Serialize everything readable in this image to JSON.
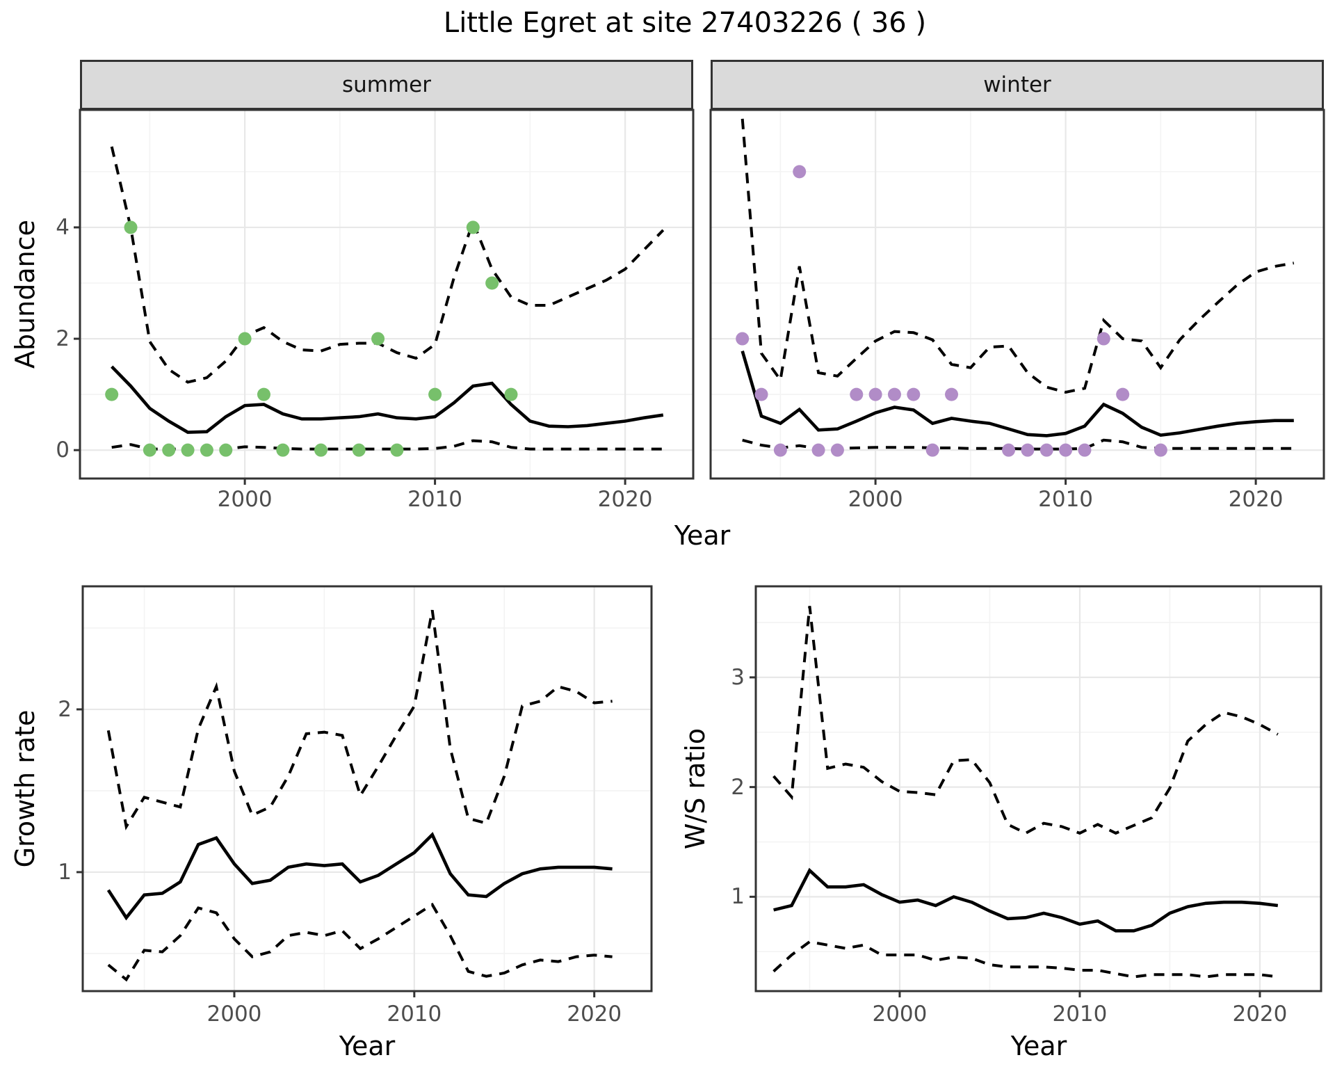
{
  "page": {
    "title": "Little Egret at site 27403226 ( 36 )"
  },
  "colors": {
    "background": "#FFFFFF",
    "panel_border": "#333333",
    "strip_background": "#DADADA",
    "strip_text": "#141414",
    "grid_major": "#E8E8E8",
    "grid_minor": "#F3F3F3",
    "tick_mark": "#333333",
    "tick_text": "#4D4D4D",
    "line": "#000000",
    "summer_point": "#77C06B",
    "winter_point": "#B18CC7"
  },
  "chart_data": [
    {
      "id": "abundance_summer",
      "type": "line",
      "facet_label": "summer",
      "xlabel": "Year",
      "ylabel": "Abundance",
      "xlim": [
        1991.33,
        2023.58
      ],
      "ylim": [
        -0.51,
        6.11
      ],
      "x_major_ticks": [
        2000,
        2010,
        2020
      ],
      "x_minor_ticks": [
        1995,
        2005,
        2015
      ],
      "y_major_ticks": [
        0,
        2,
        4
      ],
      "y_minor_ticks": [
        1,
        3,
        5
      ],
      "show_y_axis": true,
      "point_color": "#77C06B",
      "years": [
        1993,
        1994,
        1995,
        1996,
        1997,
        1998,
        1999,
        2000,
        2001,
        2002,
        2003,
        2004,
        2005,
        2006,
        2007,
        2008,
        2009,
        2010,
        2011,
        2012,
        2013,
        2014,
        2015,
        2016,
        2017,
        2018,
        2019,
        2020,
        2021,
        2022
      ],
      "series": [
        {
          "name": "median",
          "style": "solid",
          "values": [
            1.5,
            1.15,
            0.75,
            0.52,
            0.32,
            0.33,
            0.6,
            0.8,
            0.82,
            0.65,
            0.56,
            0.56,
            0.58,
            0.6,
            0.65,
            0.58,
            0.56,
            0.6,
            0.85,
            1.15,
            1.2,
            0.82,
            0.52,
            0.43,
            0.42,
            0.44,
            0.48,
            0.52,
            0.58,
            0.63
          ]
        },
        {
          "name": "lower95",
          "style": "dashed",
          "values": [
            0.05,
            0.1,
            0.02,
            0.02,
            0.02,
            0.02,
            0.02,
            0.06,
            0.05,
            0.03,
            0.02,
            0.02,
            0.02,
            0.02,
            0.02,
            0.02,
            0.02,
            0.03,
            0.07,
            0.17,
            0.15,
            0.05,
            0.02,
            0.02,
            0.02,
            0.02,
            0.02,
            0.02,
            0.02,
            0.02
          ]
        },
        {
          "name": "upper95",
          "style": "dashed",
          "values": [
            5.45,
            4.0,
            1.95,
            1.45,
            1.22,
            1.3,
            1.6,
            2.05,
            2.2,
            1.95,
            1.8,
            1.78,
            1.9,
            1.92,
            1.92,
            1.75,
            1.65,
            1.9,
            3.1,
            4.1,
            3.25,
            2.75,
            2.6,
            2.6,
            2.75,
            2.9,
            3.05,
            3.25,
            3.6,
            3.95
          ]
        }
      ],
      "observations": [
        [
          1993,
          1
        ],
        [
          1994,
          4
        ],
        [
          1995,
          0
        ],
        [
          1996,
          0
        ],
        [
          1997,
          0
        ],
        [
          1998,
          0
        ],
        [
          1999,
          0
        ],
        [
          2000,
          2
        ],
        [
          2001,
          1
        ],
        [
          2002,
          0
        ],
        [
          2004,
          0
        ],
        [
          2006,
          0
        ],
        [
          2007,
          2
        ],
        [
          2008,
          0
        ],
        [
          2010,
          1
        ],
        [
          2012,
          4
        ],
        [
          2013,
          3
        ],
        [
          2014,
          1
        ]
      ]
    },
    {
      "id": "abundance_winter",
      "type": "line",
      "facet_label": "winter",
      "xlabel": "Year",
      "ylabel": "Abundance",
      "xlim": [
        1991.33,
        2023.58
      ],
      "ylim": [
        -0.51,
        6.11
      ],
      "x_major_ticks": [
        2000,
        2010,
        2020
      ],
      "x_minor_ticks": [
        1995,
        2005,
        2015
      ],
      "y_major_ticks": [
        0,
        2,
        4
      ],
      "y_minor_ticks": [
        1,
        3,
        5
      ],
      "show_y_axis": false,
      "point_color": "#B18CC7",
      "years": [
        1993,
        1994,
        1995,
        1996,
        1997,
        1998,
        1999,
        2000,
        2001,
        2002,
        2003,
        2004,
        2005,
        2006,
        2007,
        2008,
        2009,
        2010,
        2011,
        2012,
        2013,
        2014,
        2015,
        2016,
        2017,
        2018,
        2019,
        2020,
        2021,
        2022
      ],
      "series": [
        {
          "name": "median",
          "style": "solid",
          "values": [
            1.78,
            0.61,
            0.48,
            0.73,
            0.36,
            0.38,
            0.52,
            0.67,
            0.77,
            0.72,
            0.48,
            0.57,
            0.52,
            0.48,
            0.38,
            0.28,
            0.26,
            0.3,
            0.43,
            0.82,
            0.66,
            0.41,
            0.27,
            0.31,
            0.37,
            0.43,
            0.48,
            0.51,
            0.53,
            0.53
          ]
        },
        {
          "name": "lower95",
          "style": "dashed",
          "values": [
            0.18,
            0.09,
            0.04,
            0.08,
            0.03,
            0.03,
            0.04,
            0.05,
            0.05,
            0.05,
            0.04,
            0.04,
            0.03,
            0.03,
            0.03,
            0.02,
            0.02,
            0.02,
            0.03,
            0.18,
            0.15,
            0.05,
            0.03,
            0.03,
            0.03,
            0.03,
            0.03,
            0.03,
            0.03,
            0.03
          ]
        },
        {
          "name": "upper95",
          "style": "dashed",
          "values": [
            5.95,
            1.74,
            1.26,
            3.3,
            1.39,
            1.33,
            1.65,
            1.96,
            2.13,
            2.11,
            1.98,
            1.54,
            1.48,
            1.85,
            1.87,
            1.39,
            1.13,
            1.04,
            1.11,
            2.33,
            2.0,
            1.96,
            1.48,
            1.98,
            2.33,
            2.65,
            2.96,
            3.2,
            3.3,
            3.36
          ]
        }
      ],
      "observations": [
        [
          1993,
          2
        ],
        [
          1994,
          1
        ],
        [
          1995,
          0
        ],
        [
          1996,
          5
        ],
        [
          1997,
          0
        ],
        [
          1998,
          0
        ],
        [
          1999,
          1
        ],
        [
          2000,
          1
        ],
        [
          2001,
          1
        ],
        [
          2002,
          1
        ],
        [
          2003,
          0
        ],
        [
          2004,
          1
        ],
        [
          2007,
          0
        ],
        [
          2008,
          0
        ],
        [
          2009,
          0
        ],
        [
          2010,
          0
        ],
        [
          2011,
          0
        ],
        [
          2012,
          2
        ],
        [
          2013,
          1
        ],
        [
          2015,
          0
        ]
      ]
    },
    {
      "id": "growth_rate",
      "type": "line",
      "facet_label": "",
      "xlabel": "Year",
      "ylabel": "Growth rate",
      "xlim": [
        1991.58,
        2023.18
      ],
      "ylim": [
        0.269,
        2.756
      ],
      "x_major_ticks": [
        2000,
        2010,
        2020
      ],
      "x_minor_ticks": [
        1995,
        2005,
        2015
      ],
      "y_major_ticks": [
        1,
        2
      ],
      "y_minor_ticks": [
        0.5,
        1.5,
        2.5
      ],
      "show_y_axis": true,
      "point_color": "#000000",
      "years": [
        1993,
        1994,
        1995,
        1996,
        1997,
        1998,
        1999,
        2000,
        2001,
        2002,
        2003,
        2004,
        2005,
        2006,
        2007,
        2008,
        2009,
        2010,
        2011,
        2012,
        2013,
        2014,
        2015,
        2016,
        2017,
        2018,
        2019,
        2020,
        2021
      ],
      "series": [
        {
          "name": "median",
          "style": "solid",
          "values": [
            0.89,
            0.72,
            0.86,
            0.87,
            0.94,
            1.17,
            1.21,
            1.05,
            0.93,
            0.95,
            1.03,
            1.05,
            1.04,
            1.05,
            0.94,
            0.98,
            1.05,
            1.12,
            1.23,
            0.99,
            0.86,
            0.85,
            0.93,
            0.99,
            1.02,
            1.03,
            1.03,
            1.03,
            1.02
          ]
        },
        {
          "name": "lower95",
          "style": "dashed",
          "values": [
            0.43,
            0.34,
            0.52,
            0.51,
            0.61,
            0.78,
            0.75,
            0.59,
            0.48,
            0.51,
            0.61,
            0.63,
            0.61,
            0.64,
            0.53,
            0.59,
            0.66,
            0.73,
            0.8,
            0.61,
            0.39,
            0.36,
            0.38,
            0.43,
            0.46,
            0.45,
            0.48,
            0.49,
            0.48
          ]
        },
        {
          "name": "upper95",
          "style": "dashed",
          "values": [
            1.87,
            1.28,
            1.46,
            1.43,
            1.4,
            1.88,
            2.14,
            1.62,
            1.35,
            1.4,
            1.59,
            1.85,
            1.86,
            1.84,
            1.47,
            1.65,
            1.84,
            2.02,
            2.61,
            1.76,
            1.33,
            1.3,
            1.59,
            2.02,
            2.05,
            2.14,
            2.11,
            2.04,
            2.05
          ]
        }
      ],
      "observations": []
    },
    {
      "id": "ws_ratio",
      "type": "line",
      "facet_label": "",
      "xlabel": "Year",
      "ylabel": "W/S ratio",
      "xlim": [
        1992.01,
        2023.4
      ],
      "ylim": [
        0.14,
        3.83
      ],
      "x_major_ticks": [
        2000,
        2010,
        2020
      ],
      "x_minor_ticks": [
        1995,
        2005,
        2015
      ],
      "y_major_ticks": [
        1,
        2,
        3
      ],
      "y_minor_ticks": [
        0.5,
        1.5,
        2.5,
        3.5
      ],
      "show_y_axis": true,
      "point_color": "#000000",
      "years": [
        1993,
        1994,
        1995,
        1996,
        1997,
        1998,
        1999,
        2000,
        2001,
        2002,
        2003,
        2004,
        2005,
        2006,
        2007,
        2008,
        2009,
        2010,
        2011,
        2012,
        2013,
        2014,
        2015,
        2016,
        2017,
        2018,
        2019,
        2020,
        2021
      ],
      "series": [
        {
          "name": "median",
          "style": "solid",
          "values": [
            0.88,
            0.92,
            1.24,
            1.09,
            1.09,
            1.11,
            1.02,
            0.95,
            0.97,
            0.92,
            1.0,
            0.95,
            0.87,
            0.8,
            0.81,
            0.85,
            0.81,
            0.75,
            0.78,
            0.69,
            0.69,
            0.74,
            0.85,
            0.91,
            0.94,
            0.95,
            0.95,
            0.94,
            0.92
          ]
        },
        {
          "name": "lower95",
          "style": "dashed",
          "values": [
            0.32,
            0.47,
            0.59,
            0.56,
            0.53,
            0.56,
            0.47,
            0.47,
            0.47,
            0.42,
            0.45,
            0.44,
            0.38,
            0.36,
            0.36,
            0.36,
            0.35,
            0.33,
            0.33,
            0.3,
            0.27,
            0.29,
            0.29,
            0.29,
            0.27,
            0.29,
            0.29,
            0.29,
            0.27
          ]
        },
        {
          "name": "upper95",
          "style": "dashed",
          "values": [
            2.1,
            1.91,
            3.65,
            2.17,
            2.21,
            2.18,
            2.05,
            1.96,
            1.95,
            1.93,
            2.24,
            2.25,
            2.04,
            1.66,
            1.58,
            1.67,
            1.64,
            1.58,
            1.66,
            1.58,
            1.65,
            1.72,
            1.99,
            2.42,
            2.57,
            2.68,
            2.64,
            2.57,
            2.48
          ]
        }
      ],
      "observations": []
    }
  ]
}
